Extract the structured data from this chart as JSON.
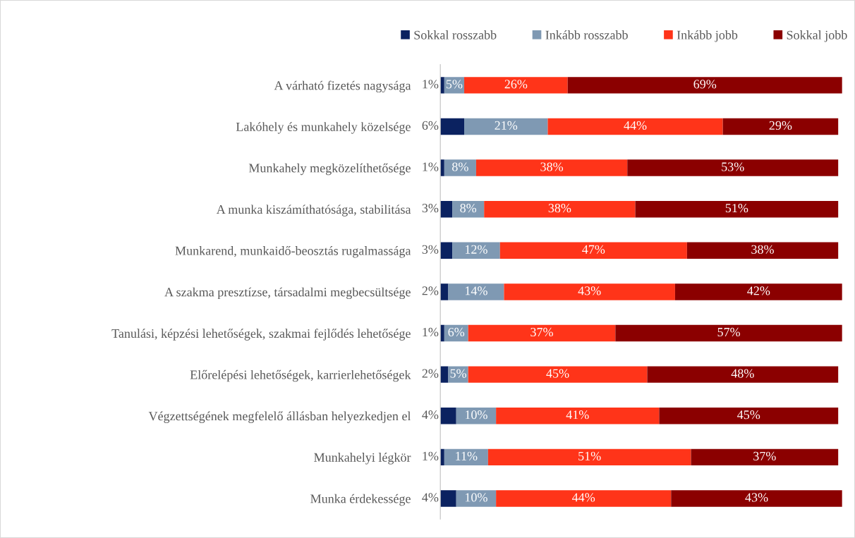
{
  "chart_data": {
    "type": "bar",
    "orientation": "horizontal",
    "stacked": true,
    "legend": "top",
    "grid": false,
    "categories": [
      "A várható fizetés nagysága",
      "Lakóhely és munkahely közelsége",
      "Munkahely megközelíthetősége",
      "A munka kiszámíthatósága, stabilitása",
      "Munkarend, munkaidő-beosztás rugalmassága",
      "A szakma presztízse, társadalmi megbecsültsége",
      "Tanulási, képzési lehetőségek, szakmai fejlődés lehetősége",
      "Előrelépési lehetőségek, karrierlehetőségek",
      "Végzettségének megfelelő állásban helyezkedjen el",
      "Munkahelyi légkör",
      "Munka érdekessége"
    ],
    "series": [
      {
        "name": "Sokkal rosszabb",
        "color": "#0b2260",
        "values": [
          1,
          6,
          1,
          3,
          3,
          2,
          1,
          2,
          4,
          1,
          4
        ],
        "value_labels": [
          "1%",
          "6%",
          "1%",
          "3%",
          "3%",
          "2%",
          "1%",
          "2%",
          "4%",
          "1%",
          "4%"
        ]
      },
      {
        "name": "Inkább rosszabb",
        "color": "#7f99b3",
        "values": [
          5,
          21,
          8,
          8,
          12,
          14,
          6,
          5,
          10,
          11,
          10
        ],
        "value_labels": [
          "5%",
          "21%",
          "8%",
          "8%",
          "12%",
          "14%",
          "6%",
          "5%",
          "10%",
          "11%",
          "10%"
        ]
      },
      {
        "name": "Inkább jobb",
        "color": "#ff3419",
        "values": [
          26,
          44,
          38,
          38,
          47,
          43,
          37,
          45,
          41,
          51,
          44
        ],
        "value_labels": [
          "26%",
          "44%",
          "38%",
          "38%",
          "47%",
          "43%",
          "37%",
          "45%",
          "41%",
          "51%",
          "44%"
        ]
      },
      {
        "name": "Sokkal jobb",
        "color": "#8b0000",
        "values": [
          69,
          29,
          53,
          51,
          38,
          42,
          57,
          48,
          45,
          37,
          43
        ],
        "value_labels": [
          "69%",
          "29%",
          "53%",
          "51%",
          "38%",
          "42%",
          "57%",
          "48%",
          "45%",
          "37%",
          "43%"
        ]
      }
    ]
  }
}
